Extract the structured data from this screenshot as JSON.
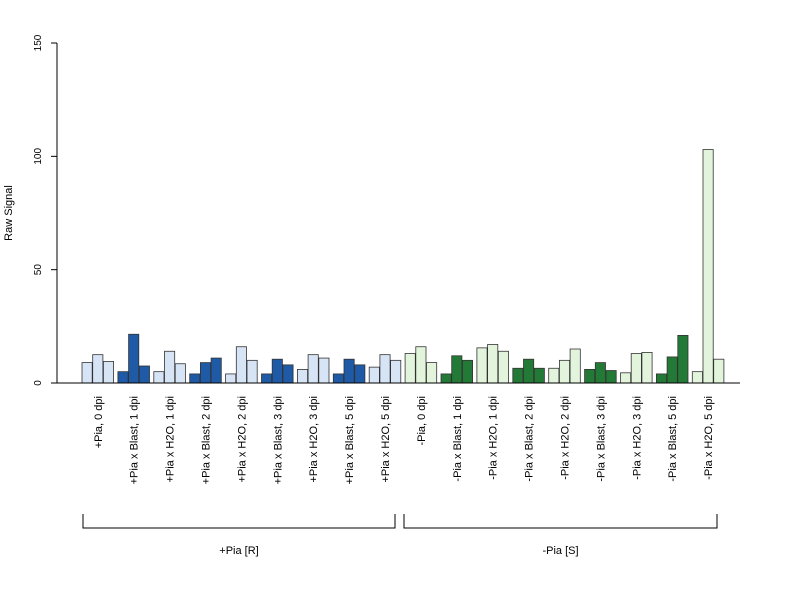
{
  "chart_data": {
    "type": "bar",
    "ylabel": "Raw Signal",
    "ylim": [
      0,
      150
    ],
    "yticks": [
      0,
      50,
      100,
      150
    ],
    "categories": [
      "+Pia, 0 dpi",
      "+Pia x Blast, 1 dpi",
      "+Pia x H2O, 1 dpi",
      "+Pia x Blast, 2 dpi",
      "+Pia x H2O, 2 dpi",
      "+Pia x Blast, 3 dpi",
      "+Pia x H2O, 3 dpi",
      "+Pia x Blast, 5 dpi",
      "+Pia x H2O, 5 dpi",
      "-Pia, 0 dpi",
      "-Pia x Blast, 1 dpi",
      "-Pia x H2O, 1 dpi",
      "-Pia x Blast, 2 dpi",
      "-Pia x H2O, 2 dpi",
      "-Pia x Blast, 3 dpi",
      "-Pia x H2O, 3 dpi",
      "-Pia x Blast, 5 dpi",
      "-Pia x H2O, 5 dpi"
    ],
    "replicates": [
      [
        9,
        12.5,
        9.5
      ],
      [
        5,
        21.5,
        7.5
      ],
      [
        5,
        14,
        8.5
      ],
      [
        4,
        9,
        11
      ],
      [
        4,
        16,
        10
      ],
      [
        4,
        10.5,
        8
      ],
      [
        6,
        12.5,
        11
      ],
      [
        4,
        10.5,
        8
      ],
      [
        7,
        12.5,
        10
      ],
      [
        13,
        16,
        9
      ],
      [
        4,
        12,
        10
      ],
      [
        15.5,
        17,
        14
      ],
      [
        6.5,
        10.5,
        6.5
      ],
      [
        6.5,
        10,
        15
      ],
      [
        6,
        9,
        5.5
      ],
      [
        4.5,
        13,
        13.5
      ],
      [
        4,
        11.5,
        21
      ],
      [
        5,
        103,
        10.5
      ]
    ],
    "groups": [
      {
        "label": "+Pia [R]",
        "from": 0,
        "to": 8
      },
      {
        "label": "-Pia [S]",
        "from": 9,
        "to": 17
      }
    ],
    "colors": {
      "pia_plus_light": "#d6e4f5",
      "pia_plus_dark": "#1f5aa6",
      "pia_minus_light": "#e2f5dc",
      "pia_minus_dark": "#237a36"
    }
  }
}
